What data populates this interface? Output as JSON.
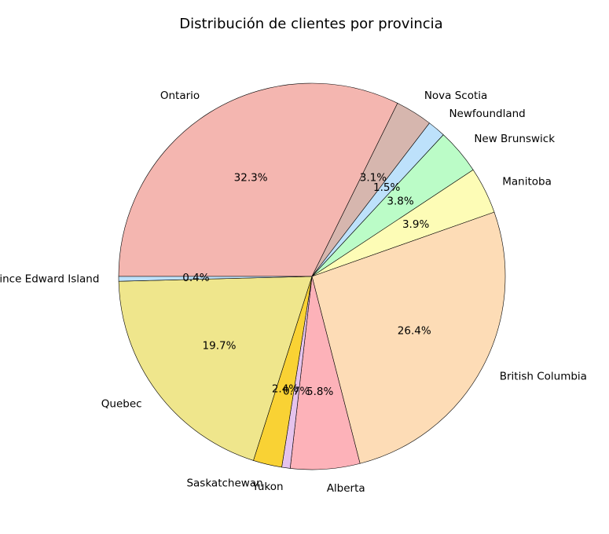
{
  "chart_data": {
    "type": "pie",
    "title": "Distribución de clientes por provincia",
    "start_angle_deg": 180,
    "direction": "clockwise",
    "slices": [
      {
        "label": "Ontario",
        "value": 32.3,
        "pct_text": "32.3%",
        "color": "#f4b6b0"
      },
      {
        "label": "Nova Scotia",
        "value": 3.1,
        "pct_text": "3.1%",
        "color": "#d6b6ae"
      },
      {
        "label": "Newfoundland",
        "value": 1.5,
        "pct_text": "1.5%",
        "color": "#bde1fb"
      },
      {
        "label": "New Brunswick",
        "value": 3.8,
        "pct_text": "3.8%",
        "color": "#bbfcc7"
      },
      {
        "label": "Manitoba",
        "value": 3.9,
        "pct_text": "3.9%",
        "color": "#fdfcb6"
      },
      {
        "label": "British Columbia",
        "value": 26.4,
        "pct_text": "26.4%",
        "color": "#fddcb6"
      },
      {
        "label": "Alberta",
        "value": 5.8,
        "pct_text": "5.8%",
        "color": "#fdb2b9"
      },
      {
        "label": "Yukon",
        "value": 0.7,
        "pct_text": "0.7%",
        "color": "#e5c3ed"
      },
      {
        "label": "Saskatchewan",
        "value": 2.4,
        "pct_text": "2.4%",
        "color": "#f9d234"
      },
      {
        "label": "Quebec",
        "value": 19.7,
        "pct_text": "19.7%",
        "color": "#efe68c"
      },
      {
        "label": "Prince Edward Island",
        "value": 0.4,
        "pct_text": "0.4%",
        "color": "#bde1fb"
      }
    ]
  }
}
